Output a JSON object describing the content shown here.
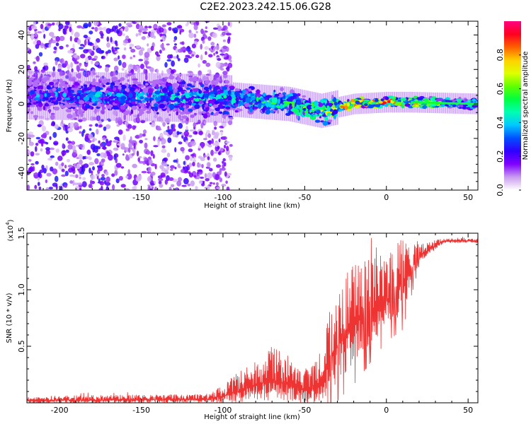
{
  "title": "C2E2.2023.242.15.06.G28",
  "chart_data": [
    {
      "type": "heatmap",
      "name": "spectrogram",
      "xlabel": "Height of straight line (km)",
      "ylabel": "Frequency (Hz)",
      "xlim": [
        -220,
        56
      ],
      "ylim": [
        -50,
        48
      ],
      "xticks": [
        -200,
        -150,
        -100,
        -50,
        0,
        50
      ],
      "yticks": [
        -40,
        -20,
        0,
        20,
        40
      ],
      "colorbar": {
        "label": "Normalized spectral amplitude",
        "range": [
          0,
          1
        ],
        "ticks": [
          "0.0",
          "0.2",
          "0.4",
          "0.6",
          "0.8"
        ],
        "colors": [
          "#ffffff",
          "#c89bf0",
          "#8000ff",
          "#3000ff",
          "#0050ff",
          "#00c8ff",
          "#00ffb0",
          "#00ff40",
          "#60ff00",
          "#e0ff00",
          "#ffd000",
          "#ff6000",
          "#ff0020",
          "#ff0080"
        ]
      },
      "ridge": [
        {
          "x": -220,
          "freq": 5,
          "amp": 0.35
        },
        {
          "x": -150,
          "freq": 4,
          "amp": 0.4
        },
        {
          "x": -100,
          "freq": 3,
          "amp": 0.45
        },
        {
          "x": -60,
          "freq": 0,
          "amp": 0.55
        },
        {
          "x": -40,
          "freq": -4,
          "amp": 0.65
        },
        {
          "x": -20,
          "freq": 0,
          "amp": 0.85
        },
        {
          "x": 0,
          "freq": 1,
          "amp": 0.9
        },
        {
          "x": 15,
          "freq": 1,
          "amp": 0.8
        },
        {
          "x": 56,
          "freq": 0,
          "amp": 0.5
        }
      ]
    },
    {
      "type": "line",
      "name": "snr",
      "xlabel": "Height of straight line (km)",
      "ylabel": "SNR (10 * v/v)",
      "yscale_note": "(x10",
      "yscale_exp": "4",
      "yscale_close": ")",
      "xlim": [
        -220,
        56
      ],
      "ylim": [
        0,
        1.5
      ],
      "xticks": [
        -200,
        -150,
        -100,
        -50,
        0,
        50
      ],
      "yticks": [
        "0.5",
        "1.0",
        "1.5"
      ],
      "ytick_values": [
        0.5,
        1.0,
        1.5
      ],
      "color": "#ee3333",
      "envelope": [
        {
          "x": -220,
          "base": 0.02,
          "amp": 0.04
        },
        {
          "x": -110,
          "base": 0.03,
          "amp": 0.05
        },
        {
          "x": -100,
          "base": 0.06,
          "amp": 0.1
        },
        {
          "x": -80,
          "base": 0.15,
          "amp": 0.25
        },
        {
          "x": -70,
          "base": 0.2,
          "amp": 0.3
        },
        {
          "x": -50,
          "base": 0.12,
          "amp": 0.2
        },
        {
          "x": -40,
          "base": 0.15,
          "amp": 0.25
        },
        {
          "x": -35,
          "base": 0.4,
          "amp": 0.5
        },
        {
          "x": -20,
          "base": 0.7,
          "amp": 0.6
        },
        {
          "x": 0,
          "base": 0.9,
          "amp": 0.4
        },
        {
          "x": 10,
          "base": 1.05,
          "amp": 0.45
        },
        {
          "x": 20,
          "base": 1.3,
          "amp": 0.1
        },
        {
          "x": 35,
          "base": 1.43,
          "amp": 0.03
        },
        {
          "x": 56,
          "base": 1.43,
          "amp": 0.03
        }
      ]
    }
  ]
}
